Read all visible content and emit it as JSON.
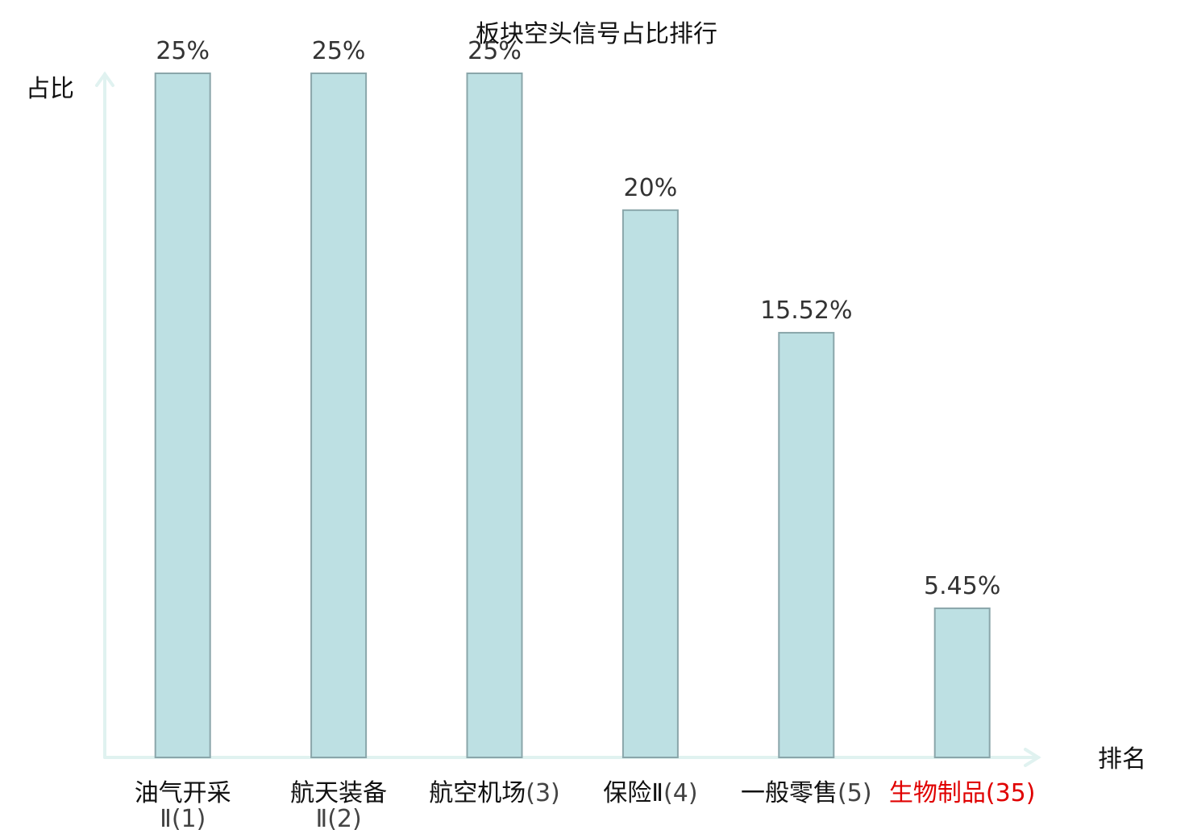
{
  "chart_data": {
    "type": "bar",
    "title": "板块空头信号占比排行",
    "ylabel": "占比",
    "xlabel": "排名",
    "ylim": [
      0,
      25
    ],
    "grid": false,
    "legend": "none",
    "categories": [
      {
        "name": "油气开采",
        "name_cont": "Ⅱ",
        "rank": "(1)",
        "highlight": false
      },
      {
        "name": "航天装备",
        "name_cont": "Ⅱ",
        "rank": "(2)",
        "highlight": false
      },
      {
        "name": "航空机场",
        "name_cont": "",
        "rank": "(3)",
        "highlight": false
      },
      {
        "name": "保险Ⅱ",
        "name_cont": "",
        "rank": "(4)",
        "highlight": false
      },
      {
        "name": "一般零售",
        "name_cont": "",
        "rank": "(5)",
        "highlight": false
      },
      {
        "name": "生物制品",
        "name_cont": "",
        "rank": "(35)",
        "highlight": true
      }
    ],
    "values": [
      25,
      25,
      25,
      20,
      15.52,
      5.45
    ],
    "value_labels": [
      "25%",
      "25%",
      "25%",
      "20%",
      "15.52%",
      "5.45%"
    ],
    "colors": {
      "bar_fill": "#bde0e3",
      "bar_edge": "#8aa6aa",
      "axis": "#e0f2f0",
      "highlight": "#e00000"
    }
  }
}
